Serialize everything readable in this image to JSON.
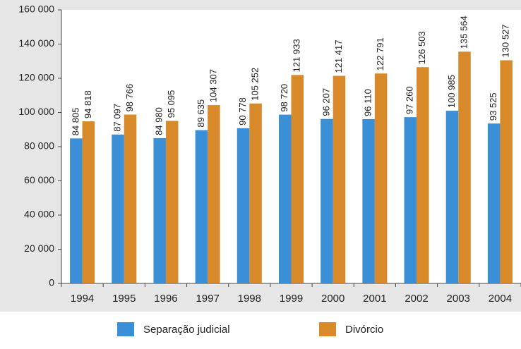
{
  "chart_data": {
    "type": "bar",
    "categories": [
      "1994",
      "1995",
      "1996",
      "1997",
      "1998",
      "1999",
      "2000",
      "2001",
      "2002",
      "2003",
      "2004"
    ],
    "series": [
      {
        "name": "Separação judicial",
        "color": "#3a8fd6",
        "values": [
          84805,
          87097,
          84980,
          89635,
          90778,
          98720,
          96207,
          96110,
          97260,
          100985,
          93525
        ],
        "value_labels": [
          "84 805",
          "87 097",
          "84 980",
          "89 635",
          "90 778",
          "98 720",
          "96 207",
          "96 110",
          "97 260",
          "100 985",
          "93 525"
        ]
      },
      {
        "name": "Divórcio",
        "color": "#d88a2a",
        "values": [
          94818,
          98766,
          95095,
          104307,
          105252,
          121933,
          121417,
          122791,
          126503,
          135564,
          130527
        ],
        "value_labels": [
          "94 818",
          "98 766",
          "95 095",
          "104 307",
          "105 252",
          "121 933",
          "121 417",
          "122 791",
          "126 503",
          "135 564",
          "130 527"
        ]
      }
    ],
    "ylim": [
      0,
      160000
    ],
    "yticks": [
      0,
      {
        "value": 20000,
        "label": "20 000"
      },
      {
        "value": 40000,
        "label": "40 000"
      },
      {
        "value": 60000,
        "label": "60 000"
      },
      {
        "value": 80000,
        "label": "80 000"
      },
      {
        "value": 100000,
        "label": "100 000"
      },
      {
        "value": 120000,
        "label": "120 000"
      },
      {
        "value": 140000,
        "label": "140 000"
      },
      {
        "value": 160000,
        "label": "160 000"
      }
    ],
    "grid": false,
    "legend": "bottom"
  }
}
